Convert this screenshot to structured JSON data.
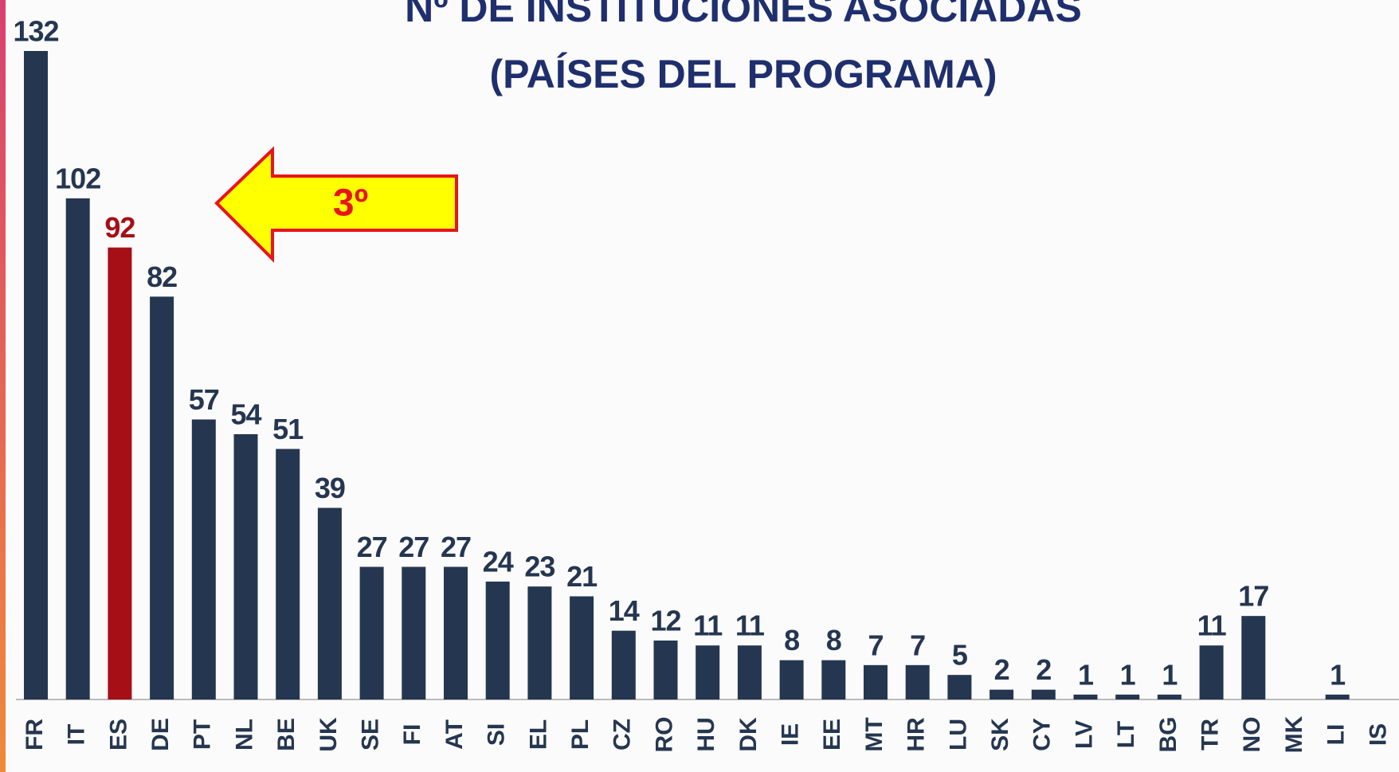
{
  "chart_data": {
    "type": "bar",
    "title": [
      "Nº DE INSTITUCIONES ASOCIADAS",
      "(PAÍSES DEL PROGRAMA)"
    ],
    "categories": [
      "FR",
      "IT",
      "ES",
      "DE",
      "PT",
      "NL",
      "BE",
      "UK",
      "SE",
      "FI",
      "AT",
      "SI",
      "EL",
      "PL",
      "CZ",
      "RO",
      "HU",
      "DK",
      "IE",
      "EE",
      "MT",
      "HR",
      "LU",
      "SK",
      "CY",
      "LV",
      "LT",
      "BG",
      "TR",
      "NO",
      "MK",
      "LI",
      "IS"
    ],
    "values": [
      132,
      102,
      92,
      82,
      57,
      54,
      51,
      39,
      27,
      27,
      27,
      24,
      23,
      21,
      14,
      12,
      11,
      11,
      8,
      8,
      7,
      7,
      5,
      2,
      2,
      1,
      1,
      1,
      11,
      17,
      null,
      1,
      null
    ],
    "colors": [
      "#253650",
      "#253650",
      "#a50f15",
      "#253650",
      "#253650",
      "#253650",
      "#253650",
      "#253650",
      "#253650",
      "#253650",
      "#253650",
      "#253650",
      "#253650",
      "#253650",
      "#253650",
      "#253650",
      "#253650",
      "#253650",
      "#253650",
      "#253650",
      "#253650",
      "#253650",
      "#253650",
      "#253650",
      "#253650",
      "#253650",
      "#253650",
      "#253650",
      "#253650",
      "#253650",
      "#253650",
      "#253650",
      "#253650"
    ],
    "annotation": "3º"
  }
}
